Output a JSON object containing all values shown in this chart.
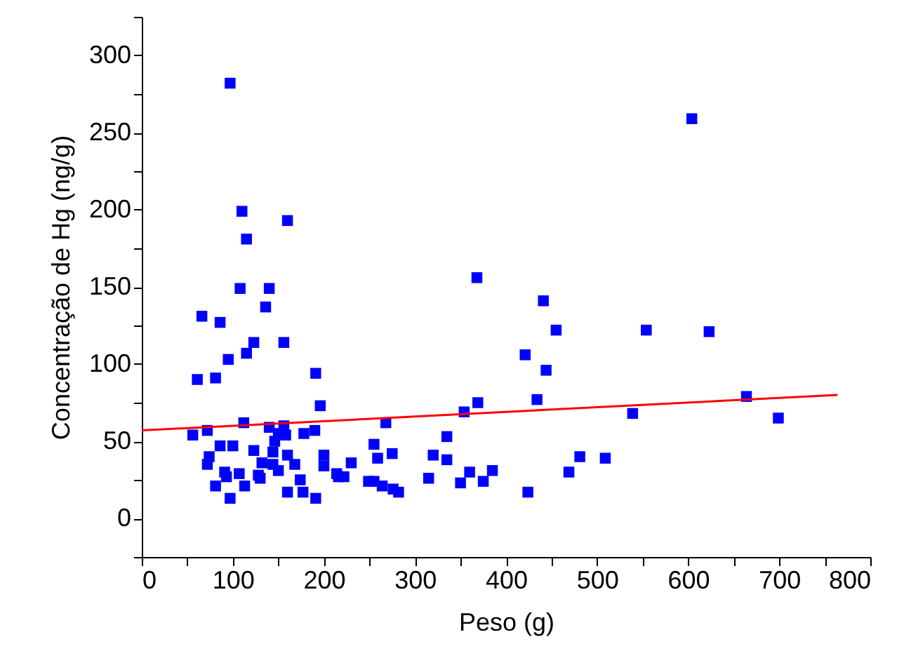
{
  "chart_data": {
    "type": "scatter",
    "xlabel": "Peso (g)",
    "ylabel": "Concentração de Hg (ng/g)",
    "xlim": [
      0,
      800
    ],
    "ylim": [
      -25,
      325
    ],
    "xticks": [
      0,
      {
        "value": 50,
        "label": null
      },
      100,
      {
        "value": 150,
        "label": null
      },
      200,
      {
        "value": 250,
        "label": null
      },
      300,
      {
        "value": 350,
        "label": null
      },
      400,
      {
        "value": 450,
        "label": null
      },
      500,
      {
        "value": 550,
        "label": null
      },
      600,
      {
        "value": 650,
        "label": null
      },
      700,
      {
        "value": 750,
        "label": null
      },
      800
    ],
    "yticks": [
      {
        "value": -25,
        "label": null
      },
      0,
      {
        "value": 25,
        "label": null
      },
      50,
      {
        "value": 75,
        "label": null
      },
      100,
      {
        "value": 125,
        "label": null
      },
      150,
      {
        "value": 175,
        "label": null
      },
      200,
      {
        "value": 225,
        "label": null
      },
      250,
      {
        "value": 275,
        "label": null
      },
      300,
      {
        "value": 325,
        "label": null
      }
    ],
    "grid": false,
    "series": [
      {
        "type": "scatter",
        "marker": "square",
        "color": "#0000ff",
        "x": [
          97,
          110,
          160,
          115,
          108,
          140,
          136,
          66,
          86,
          123,
          156,
          115,
          95,
          61,
          81,
          191,
          196,
          112,
          140,
          156,
          56,
          72,
          86,
          100,
          74,
          72,
          91,
          93,
          107,
          81,
          97,
          113,
          123,
          132,
          144,
          146,
          150,
          158,
          160,
          168,
          144,
          150,
          128,
          130,
          178,
          190,
          174,
          160,
          177,
          191,
          200,
          200,
          214,
          222,
          230,
          216,
          249,
          255,
          255,
          259,
          264,
          268,
          275,
          276,
          282,
          315,
          320,
          335,
          335,
          350,
          360,
          375,
          385,
          354,
          369,
          368,
          441,
          455,
          421,
          444,
          434,
          424,
          469,
          481,
          509,
          539,
          554,
          604,
          623,
          664,
          699
        ],
        "values": [
          282,
          199,
          193,
          181,
          149,
          149,
          137,
          131,
          127,
          114,
          114,
          107,
          103,
          90,
          91,
          94,
          73,
          62,
          59,
          60,
          54,
          57,
          47,
          47,
          40,
          35,
          30,
          27,
          29,
          21,
          13,
          21,
          44,
          36,
          43,
          50,
          55,
          54,
          41,
          35,
          35,
          31,
          28,
          26,
          55,
          57,
          25,
          17,
          17,
          13,
          41,
          34,
          29,
          27,
          36,
          27,
          24,
          24,
          48,
          39,
          21,
          62,
          42,
          19,
          17,
          26,
          41,
          53,
          38,
          23,
          30,
          24,
          31,
          69,
          75,
          156,
          141,
          122,
          106,
          96,
          77,
          17,
          30,
          40,
          39,
          68,
          122,
          259,
          121,
          79,
          65
        ]
      },
      {
        "type": "line",
        "color": "#ff0000",
        "x": [
          0,
          764
        ],
        "values": [
          57,
          80
        ]
      }
    ]
  }
}
